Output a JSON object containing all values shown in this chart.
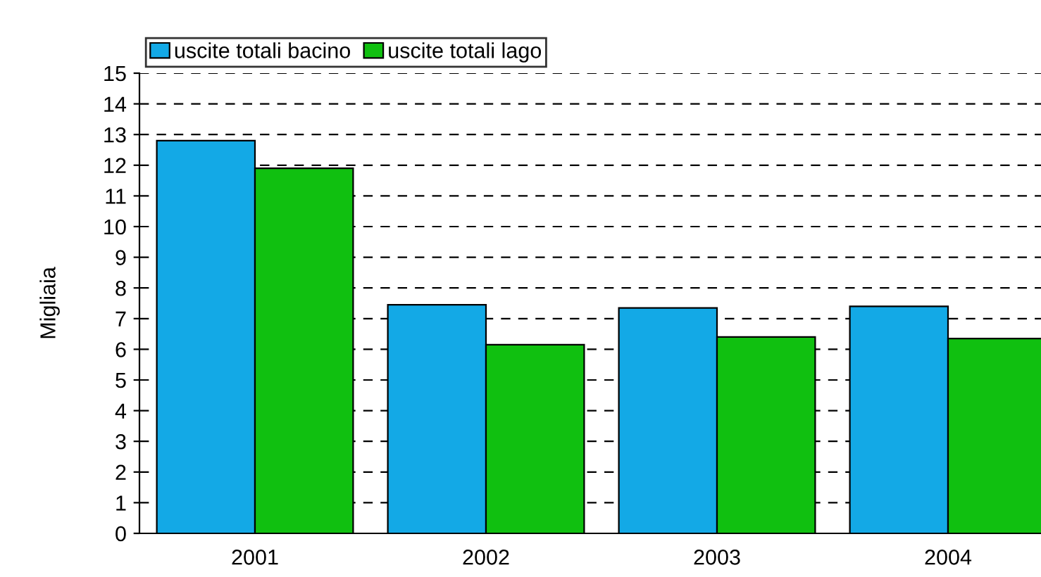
{
  "chart_data": {
    "type": "bar",
    "ylabel": "Migliaia",
    "categories": [
      "2001",
      "2002",
      "2003",
      "2004"
    ],
    "series": [
      {
        "name": "uscite totali bacino",
        "color": "#13a9e6",
        "values": [
          12.8,
          7.45,
          7.35,
          7.4
        ]
      },
      {
        "name": "uscite totali lago",
        "color": "#10c010",
        "values": [
          11.9,
          6.15,
          6.4,
          6.35
        ]
      }
    ],
    "ylim": [
      0,
      15
    ],
    "yticks": [
      0,
      1,
      2,
      3,
      4,
      5,
      6,
      7,
      8,
      9,
      10,
      11,
      12,
      13,
      14,
      15
    ],
    "grid": "y",
    "legend": "top left"
  }
}
